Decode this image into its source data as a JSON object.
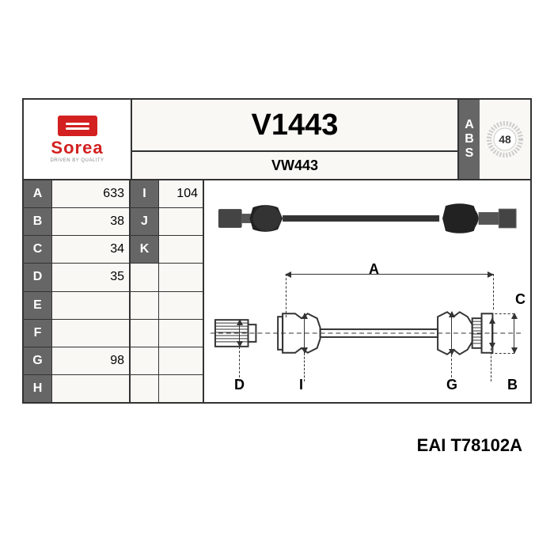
{
  "brand": {
    "name": "Sorea",
    "tagline": "DRIVEN BY QUALITY",
    "logo_color": "#d32020"
  },
  "part": {
    "number": "V1443",
    "alt_number": "VW443"
  },
  "abs": {
    "label": "ABS",
    "teeth": "48"
  },
  "specs_left": [
    {
      "k": "A",
      "v": "633"
    },
    {
      "k": "B",
      "v": "38"
    },
    {
      "k": "C",
      "v": "34"
    },
    {
      "k": "D",
      "v": "35"
    },
    {
      "k": "E",
      "v": ""
    },
    {
      "k": "F",
      "v": ""
    },
    {
      "k": "G",
      "v": "98"
    },
    {
      "k": "H",
      "v": ""
    }
  ],
  "specs_right": [
    {
      "k": "I",
      "v": "104"
    },
    {
      "k": "J",
      "v": ""
    },
    {
      "k": "K",
      "v": ""
    }
  ],
  "dim_labels": {
    "A": "A",
    "B": "B",
    "C": "C",
    "D": "D",
    "G": "G",
    "I": "I"
  },
  "footer": {
    "brand": "EAI",
    "code": "T78102A"
  },
  "colors": {
    "header_bg": "#666666",
    "border": "#333333",
    "bg": "#f9f8f4"
  }
}
